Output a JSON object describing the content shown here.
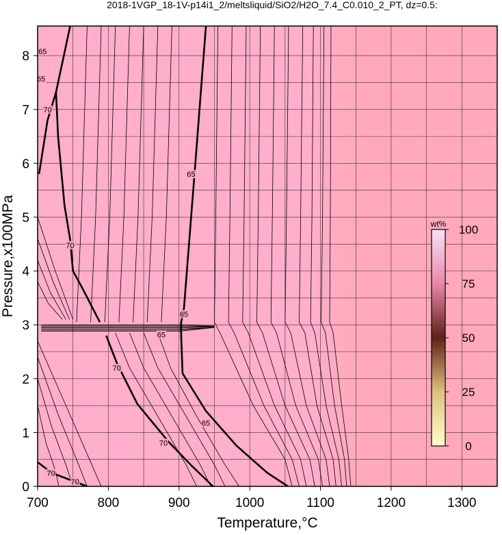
{
  "chart_data": {
    "type": "contour",
    "title": "2018-1VGP_18-1V-p14i1_2/meltsliquid/SiO2/H2O_7.4_C0.010_2_PT, dz=0.5:",
    "x_label": "Temperature,°C",
    "y_label": "Pressure,x100MPa",
    "xlim": [
      700,
      1350
    ],
    "ylim": [
      0,
      8.55
    ],
    "xticks": [
      700,
      800,
      900,
      1000,
      1100,
      1200,
      1300
    ],
    "yticks": [
      0,
      1,
      2,
      3,
      4,
      5,
      6,
      7,
      8
    ],
    "grid_x": [
      750,
      800,
      850,
      900,
      950,
      1000,
      1050,
      1100,
      1150,
      1200,
      1250,
      1300
    ],
    "grid_y": [
      0.5,
      1,
      1.5,
      2,
      2.5,
      3,
      3.5,
      4,
      4.5,
      5,
      5.5,
      6,
      6.5,
      7,
      7.5,
      8
    ],
    "background_left": "#ffaecb",
    "background_right": "#ffa9ba",
    "line_color": "#000000",
    "contours": [
      {
        "level": 65,
        "bold": true,
        "x": [
          938,
          923,
          907,
          903,
          903,
          905,
          938,
          981,
          1025,
          1054
        ],
        "y": [
          8.55,
          5.98,
          3.31,
          3.05,
          2.8,
          2.1,
          1.4,
          0.76,
          0.25,
          0
        ]
      },
      {
        "level": 70,
        "bold": true,
        "x": [
          746,
          726,
          729,
          738,
          746,
          750,
          763,
          788
        ],
        "y": [
          8.55,
          7.32,
          6.49,
          5.22,
          4.58,
          4.0,
          3.69,
          3.05
        ]
      },
      {
        "level": 70,
        "bold": true,
        "x": [
          797,
          812,
          841,
          885,
          918,
          948
        ],
        "y": [
          2.8,
          2.29,
          1.53,
          0.83,
          0.38,
          0
        ]
      },
      {
        "level": 70,
        "bold": true,
        "x": [
          726,
          714,
          702
        ],
        "y": [
          7.32,
          6.8,
          5.8
        ]
      },
      {
        "level": 70,
        "bold": true,
        "x": [
          700,
          720,
          750,
          770
        ],
        "y": [
          0.45,
          0.25,
          0.1,
          0
        ]
      },
      {
        "x": [
          955,
          952,
          950,
          958,
          1005,
          1050,
          1060
        ],
        "y": [
          8.55,
          5,
          3.05,
          2.85,
          1.5,
          0.5,
          0
        ]
      },
      {
        "x": [
          975,
          972,
          970,
          978,
          1020,
          1060,
          1070
        ],
        "y": [
          8.55,
          5,
          3.05,
          2.85,
          1.5,
          0.5,
          0
        ]
      },
      {
        "x": [
          995,
          992,
          990,
          998,
          1035,
          1072,
          1080
        ],
        "y": [
          8.55,
          5,
          3.05,
          2.85,
          1.5,
          0.5,
          0
        ]
      },
      {
        "x": [
          1015,
          1012,
          1010,
          1018,
          1050,
          1085,
          1092
        ],
        "y": [
          8.55,
          5,
          3.05,
          2.85,
          1.5,
          0.5,
          0
        ]
      },
      {
        "x": [
          1035,
          1032,
          1030,
          1038,
          1065,
          1097,
          1103
        ],
        "y": [
          8.55,
          5,
          3.05,
          2.85,
          1.5,
          0.5,
          0
        ]
      },
      {
        "x": [
          1055,
          1052,
          1050,
          1058,
          1080,
          1108,
          1113
        ],
        "y": [
          8.55,
          5,
          3.05,
          2.85,
          1.5,
          0.5,
          0
        ]
      },
      {
        "x": [
          1075,
          1072,
          1070,
          1078,
          1095,
          1118,
          1122
        ],
        "y": [
          8.55,
          5,
          3.05,
          2.85,
          1.5,
          0.5,
          0
        ]
      },
      {
        "x": [
          1090,
          1088,
          1086,
          1092,
          1108,
          1126,
          1130
        ],
        "y": [
          8.55,
          5,
          3.05,
          2.85,
          1.5,
          0.5,
          0
        ]
      },
      {
        "x": [
          1105,
          1103,
          1101,
          1107,
          1120,
          1134,
          1137
        ],
        "y": [
          8.55,
          5,
          3.05,
          2.85,
          1.5,
          0.5,
          0
        ]
      },
      {
        "x": [
          1115,
          1114,
          1113,
          1118,
          1130,
          1140,
          1143
        ],
        "y": [
          8.55,
          5,
          3.05,
          2.85,
          1.5,
          0.5,
          0
        ]
      },
      {
        "x": [
          770,
          762,
          755
        ],
        "y": [
          8.55,
          5,
          3.05
        ]
      },
      {
        "x": [
          790,
          782,
          775
        ],
        "y": [
          8.55,
          5,
          3.05
        ]
      },
      {
        "x": [
          810,
          802,
          795
        ],
        "y": [
          8.55,
          5,
          3.05
        ]
      },
      {
        "x": [
          830,
          822,
          815
        ],
        "y": [
          8.55,
          5,
          3.05
        ]
      },
      {
        "x": [
          850,
          842,
          835
        ],
        "y": [
          8.55,
          5,
          3.05
        ]
      },
      {
        "x": [
          870,
          862,
          855
        ],
        "y": [
          8.55,
          5,
          3.05
        ]
      },
      {
        "x": [
          890,
          882,
          875
        ],
        "y": [
          8.55,
          5,
          3.05
        ]
      },
      {
        "x": [
          810,
          830,
          870,
          910,
          925
        ],
        "y": [
          2.85,
          2.2,
          1.3,
          0.4,
          0
        ]
      },
      {
        "x": [
          830,
          850,
          890,
          930,
          945
        ],
        "y": [
          2.85,
          2.2,
          1.3,
          0.4,
          0
        ]
      },
      {
        "x": [
          850,
          870,
          910,
          950,
          965
        ],
        "y": [
          2.85,
          2.2,
          1.3,
          0.4,
          0
        ]
      },
      {
        "x": [
          870,
          888,
          925,
          965,
          985
        ],
        "y": [
          2.85,
          2.2,
          1.3,
          0.4,
          0
        ]
      },
      {
        "x": [
          700,
          725,
          750
        ],
        "y": [
          5.0,
          4.0,
          3.1
        ]
      },
      {
        "x": [
          700,
          722,
          745
        ],
        "y": [
          4.6,
          3.8,
          3.1
        ]
      },
      {
        "x": [
          700,
          718,
          740
        ],
        "y": [
          4.2,
          3.6,
          3.1
        ]
      },
      {
        "x": [
          700,
          715,
          735
        ],
        "y": [
          3.8,
          3.4,
          3.1
        ]
      },
      {
        "x": [
          700,
          740,
          770,
          790
        ],
        "y": [
          2.7,
          1.5,
          0.6,
          0
        ]
      },
      {
        "x": [
          700,
          730,
          755,
          770
        ],
        "y": [
          2.4,
          1.3,
          0.5,
          0
        ]
      },
      {
        "x": [
          700,
          720,
          740,
          750
        ],
        "y": [
          2.0,
          1.1,
          0.4,
          0
        ]
      },
      {
        "x": [
          700,
          712,
          725,
          730
        ],
        "y": [
          1.5,
          0.8,
          0.3,
          0
        ]
      },
      {
        "x": [
          705,
          900,
          950
        ],
        "y": [
          2.88,
          2.88,
          2.95
        ]
      },
      {
        "x": [
          705,
          900,
          950
        ],
        "y": [
          2.9,
          2.9,
          2.95
        ]
      },
      {
        "x": [
          705,
          900,
          950
        ],
        "y": [
          2.92,
          2.92,
          2.95
        ]
      },
      {
        "x": [
          705,
          900,
          950
        ],
        "y": [
          2.94,
          2.94,
          2.96
        ]
      },
      {
        "x": [
          705,
          900,
          950
        ],
        "y": [
          2.96,
          2.96,
          2.97
        ]
      },
      {
        "x": [
          705,
          900,
          950
        ],
        "y": [
          2.98,
          2.98,
          2.97
        ]
      },
      {
        "x": [
          705,
          900,
          950
        ],
        "y": [
          3.0,
          3.0,
          2.98
        ]
      }
    ],
    "contour_labels": [
      {
        "text": "65",
        "x": 917,
        "y": 5.8
      },
      {
        "text": "65",
        "x": 907,
        "y": 3.2
      },
      {
        "text": "65",
        "x": 875,
        "y": 2.82
      },
      {
        "text": "65",
        "x": 938,
        "y": 1.18
      },
      {
        "text": "70",
        "x": 746,
        "y": 4.48
      },
      {
        "text": "70",
        "x": 812,
        "y": 2.2
      },
      {
        "text": "70",
        "x": 878,
        "y": 0.81
      },
      {
        "text": "70",
        "x": 714,
        "y": 7.0
      },
      {
        "text": "70",
        "x": 719,
        "y": 0.25
      },
      {
        "text": "70",
        "x": 753,
        "y": 0.09
      },
      {
        "text": "65",
        "x": 707,
        "y": 8.08
      },
      {
        "text": "65",
        "x": 705,
        "y": 7.57
      }
    ],
    "colorbar": {
      "label": "wt%",
      "lim": [
        0,
        100
      ],
      "ticks": [
        0,
        25,
        50,
        75,
        100
      ],
      "colors": [
        "#ffffc8",
        "#e0c080",
        "#602018",
        "#e888a8",
        "#f8e0f8"
      ]
    }
  }
}
